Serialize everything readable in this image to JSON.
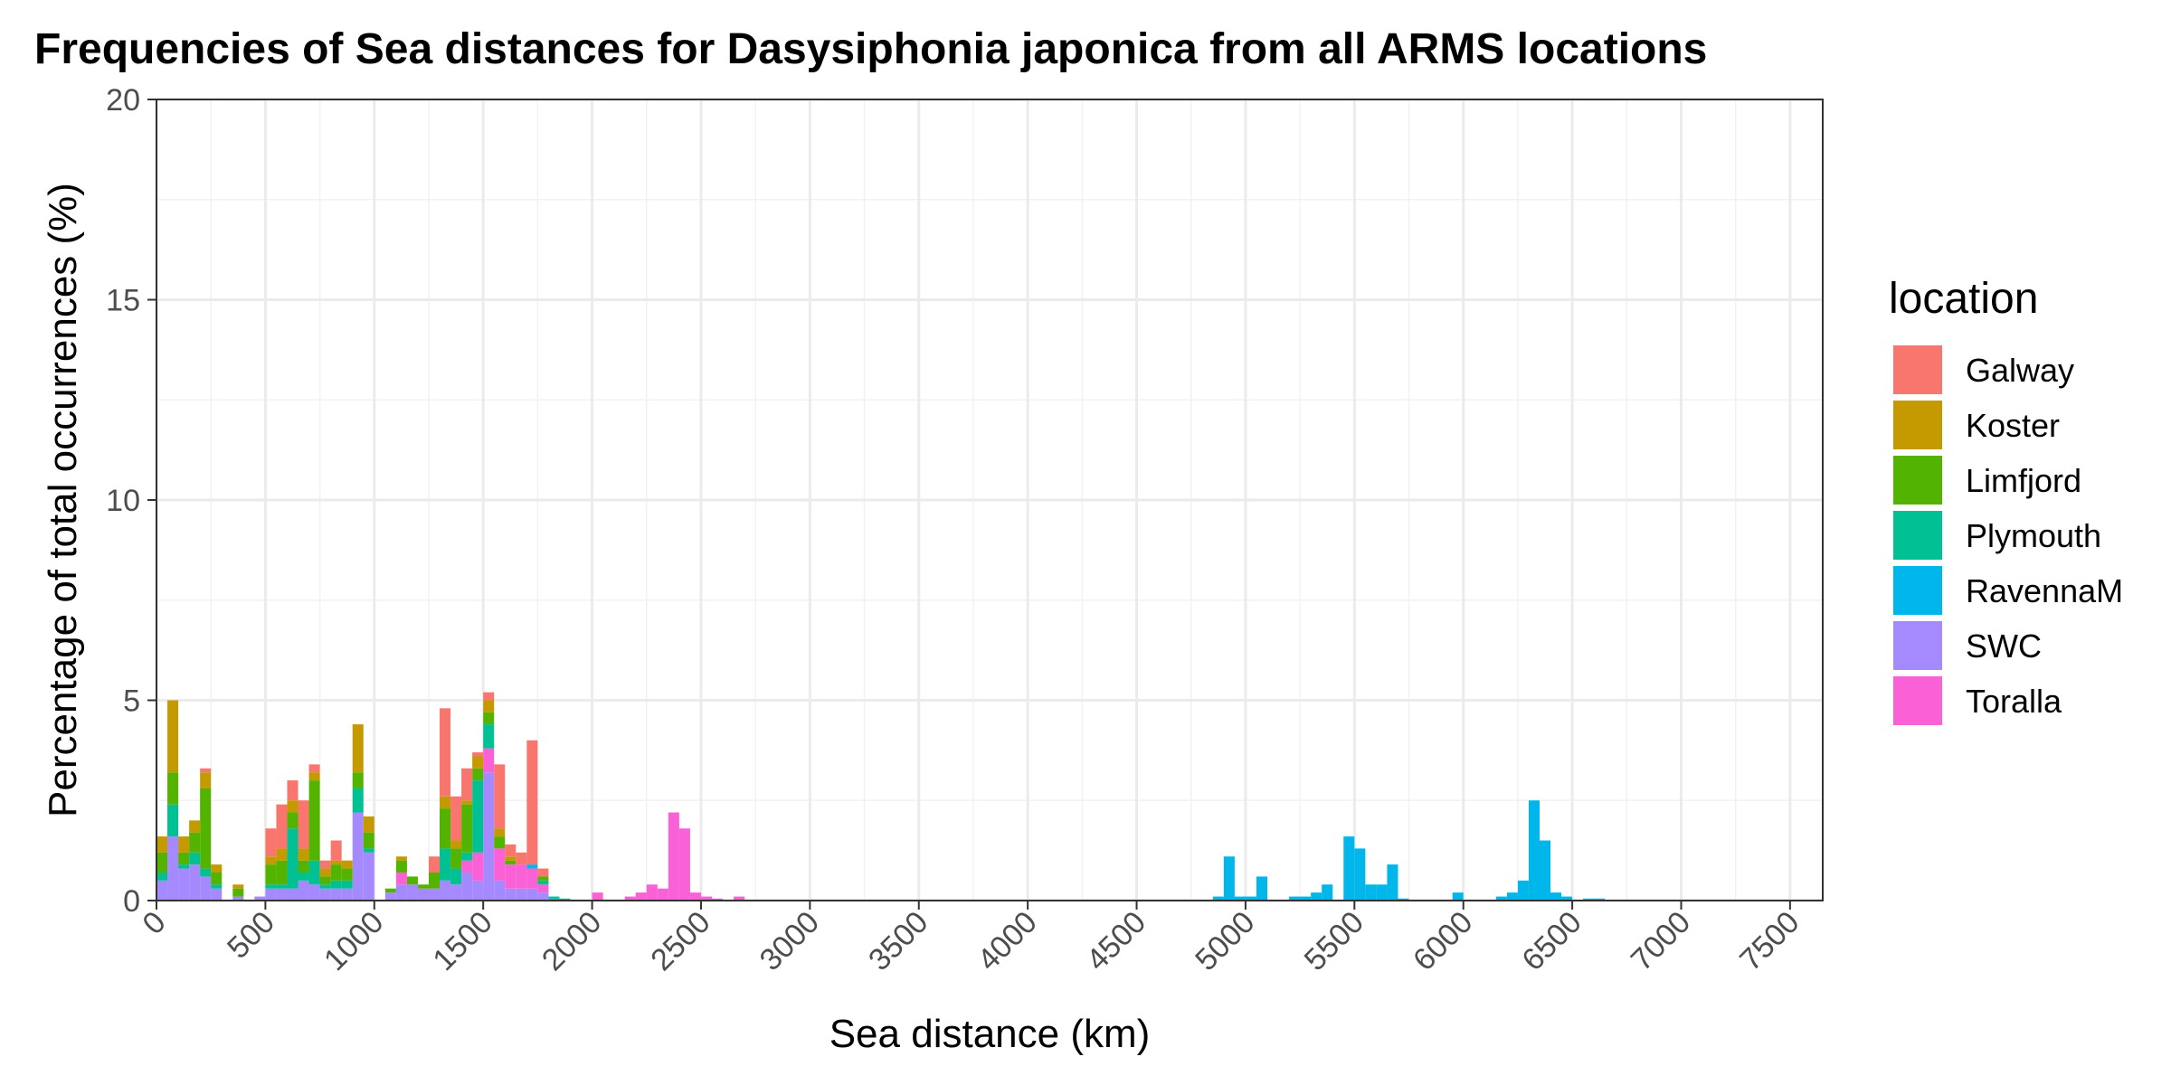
{
  "chart_data": {
    "type": "bar",
    "stacked": true,
    "title": "Frequencies of Sea distances for Dasysiphonia japonica from all ARMS locations",
    "xlabel": "Sea distance (km)",
    "ylabel": "Percentage of total occurrences (%)",
    "xlim": [
      0,
      7650
    ],
    "ylim": [
      0,
      20
    ],
    "x_ticks": [
      0,
      500,
      1000,
      1500,
      2000,
      2500,
      3000,
      3500,
      4000,
      4500,
      5000,
      5500,
      6000,
      6500,
      7000,
      7500
    ],
    "y_ticks": [
      0,
      5,
      10,
      15,
      20
    ],
    "bin_width": 50,
    "grid": true,
    "legend": {
      "title": "location",
      "position": "right"
    },
    "series": [
      {
        "name": "SWC",
        "color": "#A58AFF",
        "bins": [
          [
            0,
            0.5
          ],
          [
            50,
            1.6
          ],
          [
            100,
            0.8
          ],
          [
            150,
            0.9
          ],
          [
            200,
            0.6
          ],
          [
            250,
            0.3
          ],
          [
            350,
            0.1
          ],
          [
            450,
            0.1
          ],
          [
            500,
            0.3
          ],
          [
            550,
            0.3
          ],
          [
            600,
            0.3
          ],
          [
            650,
            0.5
          ],
          [
            700,
            0.4
          ],
          [
            750,
            0.3
          ],
          [
            800,
            0.3
          ],
          [
            850,
            0.3
          ],
          [
            900,
            2.2
          ],
          [
            950,
            1.2
          ],
          [
            1050,
            0.2
          ],
          [
            1100,
            0.4
          ],
          [
            1150,
            0.4
          ],
          [
            1200,
            0.3
          ],
          [
            1250,
            0.3
          ],
          [
            1300,
            0.5
          ],
          [
            1350,
            0.4
          ],
          [
            1400,
            0.7
          ],
          [
            1450,
            0.5
          ],
          [
            1500,
            3.2
          ],
          [
            1550,
            0.5
          ],
          [
            1600,
            0.3
          ],
          [
            1650,
            0.3
          ],
          [
            1700,
            0.3
          ],
          [
            1750,
            0.2
          ]
        ]
      },
      {
        "name": "Toralla",
        "color": "#FB61D7",
        "bins": [
          [
            0,
            0
          ],
          [
            50,
            0
          ],
          [
            100,
            0
          ],
          [
            150,
            0
          ],
          [
            200,
            0
          ],
          [
            250,
            0
          ],
          [
            350,
            0
          ],
          [
            450,
            0
          ],
          [
            500,
            0
          ],
          [
            550,
            0
          ],
          [
            600,
            0
          ],
          [
            650,
            0
          ],
          [
            700,
            0
          ],
          [
            750,
            0
          ],
          [
            800,
            0
          ],
          [
            850,
            0
          ],
          [
            900,
            0
          ],
          [
            950,
            0
          ],
          [
            1050,
            0
          ],
          [
            1100,
            0.3
          ],
          [
            1150,
            0
          ],
          [
            1200,
            0
          ],
          [
            1250,
            0
          ],
          [
            1300,
            0
          ],
          [
            1350,
            0
          ],
          [
            1400,
            0.3
          ],
          [
            1450,
            0.7
          ],
          [
            1500,
            0.6
          ],
          [
            1550,
            0.8
          ],
          [
            1600,
            0.6
          ],
          [
            1650,
            0.6
          ],
          [
            1700,
            0.5
          ],
          [
            1750,
            0.2
          ],
          [
            2000,
            0.2
          ],
          [
            2150,
            0.1
          ],
          [
            2200,
            0.2
          ],
          [
            2250,
            0.4
          ],
          [
            2300,
            0.3
          ],
          [
            2350,
            2.2
          ],
          [
            2400,
            1.8
          ],
          [
            2450,
            0.2
          ],
          [
            2500,
            0.1
          ],
          [
            2550,
            0.05
          ],
          [
            2650,
            0.1
          ]
        ]
      },
      {
        "name": "RavennaM",
        "color": "#00B6EB",
        "bins": [
          [
            0,
            0
          ],
          [
            50,
            0
          ],
          [
            100,
            0
          ],
          [
            150,
            0
          ],
          [
            200,
            0
          ],
          [
            250,
            0
          ],
          [
            350,
            0
          ],
          [
            450,
            0
          ],
          [
            500,
            0
          ],
          [
            550,
            0
          ],
          [
            600,
            0
          ],
          [
            650,
            0
          ],
          [
            700,
            0
          ],
          [
            750,
            0
          ],
          [
            800,
            0
          ],
          [
            850,
            0
          ],
          [
            900,
            0
          ],
          [
            950,
            0
          ],
          [
            1050,
            0
          ],
          [
            1100,
            0
          ],
          [
            1150,
            0
          ],
          [
            1200,
            0
          ],
          [
            1250,
            0
          ],
          [
            1300,
            0
          ],
          [
            1350,
            0
          ],
          [
            1400,
            0
          ],
          [
            1450,
            0
          ],
          [
            1500,
            0
          ],
          [
            1550,
            0
          ],
          [
            1600,
            0
          ],
          [
            1650,
            0
          ],
          [
            1700,
            0.1
          ],
          [
            1750,
            0
          ],
          [
            1800,
            0.05
          ],
          [
            4850,
            0.1
          ],
          [
            4900,
            1.1
          ],
          [
            4950,
            0.1
          ],
          [
            5000,
            0.1
          ],
          [
            5050,
            0.6
          ],
          [
            5200,
            0.1
          ],
          [
            5250,
            0.1
          ],
          [
            5300,
            0.2
          ],
          [
            5350,
            0.4
          ],
          [
            5450,
            1.6
          ],
          [
            5500,
            1.3
          ],
          [
            5550,
            0.4
          ],
          [
            5600,
            0.4
          ],
          [
            5650,
            0.9
          ],
          [
            5700,
            0.05
          ],
          [
            5950,
            0.2
          ],
          [
            6150,
            0.1
          ],
          [
            6200,
            0.2
          ],
          [
            6250,
            0.5
          ],
          [
            6300,
            2.5
          ],
          [
            6350,
            1.5
          ],
          [
            6400,
            0.2
          ],
          [
            6450,
            0.1
          ],
          [
            6550,
            0.05
          ],
          [
            6600,
            0.05
          ]
        ]
      },
      {
        "name": "Plymouth",
        "color": "#00C094",
        "bins": [
          [
            0,
            0.2
          ],
          [
            50,
            0.8
          ],
          [
            100,
            0.1
          ],
          [
            150,
            0.3
          ],
          [
            200,
            0.2
          ],
          [
            250,
            0.1
          ],
          [
            350,
            0
          ],
          [
            450,
            0
          ],
          [
            500,
            0.1
          ],
          [
            550,
            0.1
          ],
          [
            600,
            1.5
          ],
          [
            650,
            0.2
          ],
          [
            700,
            0.6
          ],
          [
            750,
            0.1
          ],
          [
            800,
            0.2
          ],
          [
            850,
            0.2
          ],
          [
            900,
            0.6
          ],
          [
            950,
            0.1
          ],
          [
            1050,
            0
          ],
          [
            1100,
            0
          ],
          [
            1150,
            0
          ],
          [
            1200,
            0
          ],
          [
            1250,
            0
          ],
          [
            1300,
            0.8
          ],
          [
            1350,
            0.4
          ],
          [
            1400,
            0.2
          ],
          [
            1450,
            1.8
          ],
          [
            1500,
            0.6
          ],
          [
            1550,
            0
          ],
          [
            1600,
            0
          ],
          [
            1650,
            0
          ],
          [
            1700,
            0
          ],
          [
            1750,
            0.1
          ],
          [
            1800,
            0.05
          ],
          [
            1850,
            0.05
          ]
        ]
      },
      {
        "name": "Limfjord",
        "color": "#53B400",
        "bins": [
          [
            0,
            0.5
          ],
          [
            50,
            0.8
          ],
          [
            100,
            0.3
          ],
          [
            150,
            0.5
          ],
          [
            200,
            2.0
          ],
          [
            250,
            0.3
          ],
          [
            350,
            0.2
          ],
          [
            450,
            0
          ],
          [
            500,
            0.5
          ],
          [
            550,
            0.6
          ],
          [
            600,
            0.4
          ],
          [
            650,
            0.3
          ],
          [
            700,
            2.0
          ],
          [
            750,
            0.2
          ],
          [
            800,
            0.4
          ],
          [
            850,
            0.3
          ],
          [
            900,
            0.4
          ],
          [
            950,
            0.4
          ],
          [
            1050,
            0.1
          ],
          [
            1100,
            0.3
          ],
          [
            1150,
            0.2
          ],
          [
            1200,
            0.1
          ],
          [
            1250,
            0.4
          ],
          [
            1300,
            1.0
          ],
          [
            1350,
            0.5
          ],
          [
            1400,
            1.2
          ],
          [
            1450,
            0.3
          ],
          [
            1500,
            0.3
          ],
          [
            1550,
            0.3
          ],
          [
            1600,
            0.1
          ],
          [
            1650,
            0
          ],
          [
            1700,
            0
          ],
          [
            1750,
            0.1
          ]
        ]
      },
      {
        "name": "Koster",
        "color": "#C49A00",
        "bins": [
          [
            0,
            0.4
          ],
          [
            50,
            1.8
          ],
          [
            100,
            0.4
          ],
          [
            150,
            0.3
          ],
          [
            200,
            0.4
          ],
          [
            250,
            0.2
          ],
          [
            350,
            0.1
          ],
          [
            450,
            0
          ],
          [
            500,
            0.2
          ],
          [
            550,
            0.3
          ],
          [
            600,
            0.3
          ],
          [
            650,
            0.3
          ],
          [
            700,
            0.2
          ],
          [
            750,
            0.2
          ],
          [
            800,
            0.1
          ],
          [
            850,
            0.2
          ],
          [
            900,
            1.2
          ],
          [
            950,
            0.4
          ],
          [
            1050,
            0
          ],
          [
            1100,
            0.1
          ],
          [
            1150,
            0
          ],
          [
            1200,
            0
          ],
          [
            1250,
            0
          ],
          [
            1300,
            0.3
          ],
          [
            1350,
            0.2
          ],
          [
            1400,
            0.1
          ],
          [
            1450,
            0.3
          ],
          [
            1500,
            0.3
          ],
          [
            1550,
            0.2
          ],
          [
            1600,
            0.1
          ],
          [
            1650,
            0
          ],
          [
            1700,
            0
          ],
          [
            1750,
            0
          ]
        ]
      },
      {
        "name": "Galway",
        "color": "#F8766D",
        "bins": [
          [
            0,
            0
          ],
          [
            50,
            0
          ],
          [
            100,
            0
          ],
          [
            150,
            0
          ],
          [
            200,
            0.1
          ],
          [
            250,
            0
          ],
          [
            350,
            0
          ],
          [
            450,
            0
          ],
          [
            500,
            0.7
          ],
          [
            550,
            1.1
          ],
          [
            600,
            0.5
          ],
          [
            650,
            1.2
          ],
          [
            700,
            0.2
          ],
          [
            750,
            0.2
          ],
          [
            800,
            0.5
          ],
          [
            850,
            0
          ],
          [
            900,
            0
          ],
          [
            950,
            0
          ],
          [
            1050,
            0
          ],
          [
            1100,
            0
          ],
          [
            1150,
            0
          ],
          [
            1200,
            0
          ],
          [
            1250,
            0.4
          ],
          [
            1300,
            2.2
          ],
          [
            1350,
            1.1
          ],
          [
            1400,
            0.8
          ],
          [
            1450,
            0.1
          ],
          [
            1500,
            0.2
          ],
          [
            1550,
            1.6
          ],
          [
            1600,
            0.3
          ],
          [
            1650,
            0.3
          ],
          [
            1700,
            3.1
          ],
          [
            1750,
            0.2
          ]
        ]
      }
    ]
  }
}
